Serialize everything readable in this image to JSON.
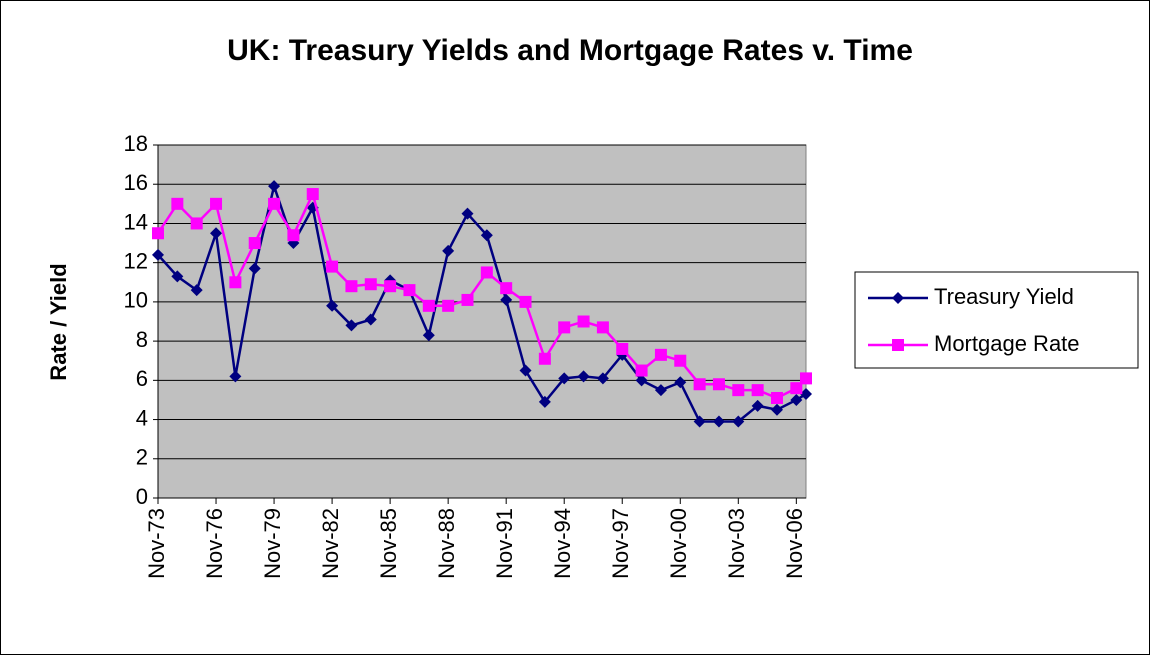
{
  "chart_data": {
    "type": "line",
    "title": "UK: Treasury Yields and Mortgage Rates v. Time",
    "ylabel": "Rate / Yield",
    "x": [
      1973,
      1974,
      1975,
      1976,
      1977,
      1978,
      1979,
      1980,
      1981,
      1982,
      1983,
      1984,
      1985,
      1986,
      1987,
      1988,
      1989,
      1990,
      1991,
      1992,
      1993,
      1994,
      1995,
      1996,
      1997,
      1998,
      1999,
      2000,
      2001,
      2002,
      2003,
      2004,
      2005,
      2006,
      2006.5
    ],
    "series": [
      {
        "name": "Treasury Yield",
        "color": "#000080",
        "marker": "diamond",
        "values": [
          12.4,
          11.3,
          10.6,
          13.5,
          6.2,
          11.7,
          15.9,
          13.0,
          14.8,
          9.8,
          8.8,
          9.1,
          11.1,
          10.6,
          8.3,
          12.6,
          14.5,
          13.4,
          10.1,
          6.5,
          4.9,
          6.1,
          6.2,
          6.1,
          7.3,
          6.0,
          5.5,
          5.9,
          3.9,
          3.9,
          3.9,
          4.7,
          4.5,
          5.0,
          5.3
        ]
      },
      {
        "name": "Mortgage Rate",
        "color": "#ff00ff",
        "marker": "square",
        "values": [
          13.5,
          15.0,
          14.0,
          15.0,
          11.0,
          13.0,
          15.0,
          13.4,
          15.5,
          11.8,
          10.8,
          10.9,
          10.8,
          10.6,
          9.8,
          9.8,
          10.1,
          11.5,
          10.7,
          10.0,
          7.1,
          8.7,
          9.0,
          8.7,
          7.6,
          6.5,
          7.3,
          7.0,
          5.8,
          5.8,
          5.5,
          5.5,
          5.1,
          5.6,
          6.1
        ]
      }
    ],
    "xlim": [
      1973,
      2006.5
    ],
    "xticks": [
      {
        "value": 1973,
        "label": "Nov-73"
      },
      {
        "value": 1976,
        "label": "Nov-76"
      },
      {
        "value": 1979,
        "label": "Nov-79"
      },
      {
        "value": 1982,
        "label": "Nov-82"
      },
      {
        "value": 1985,
        "label": "Nov-85"
      },
      {
        "value": 1988,
        "label": "Nov-88"
      },
      {
        "value": 1991,
        "label": "Nov-91"
      },
      {
        "value": 1994,
        "label": "Nov-94"
      },
      {
        "value": 1997,
        "label": "Nov-97"
      },
      {
        "value": 2000,
        "label": "Nov-00"
      },
      {
        "value": 2003,
        "label": "Nov-03"
      },
      {
        "value": 2006,
        "label": "Nov-06"
      }
    ],
    "ylim": [
      0,
      18
    ],
    "yticks": [
      0,
      2,
      4,
      6,
      8,
      10,
      12,
      14,
      16,
      18
    ],
    "grid": true,
    "plot_background": "#c0c0c0",
    "legend": "right"
  }
}
